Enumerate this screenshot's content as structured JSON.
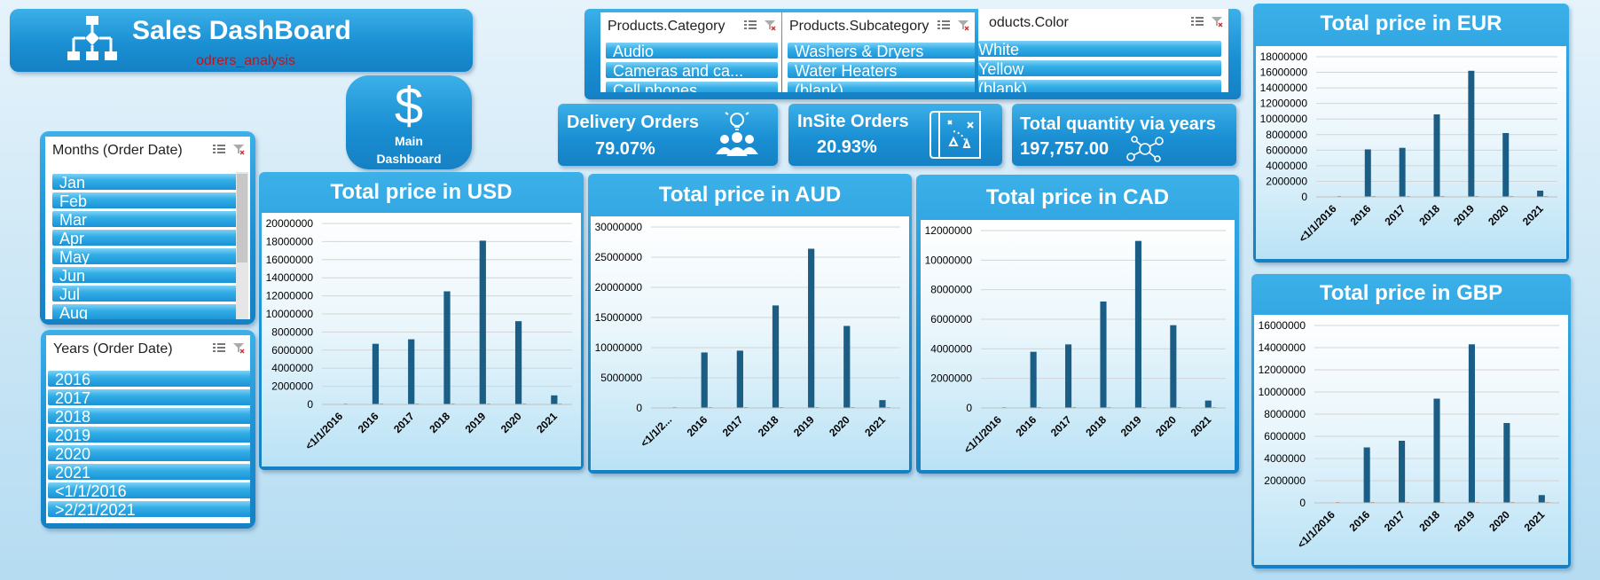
{
  "header": {
    "title": "Sales DashBoard",
    "subtitle": "odrers_analysis",
    "icon": "flowchart-icon"
  },
  "main_button": {
    "icon": "dollar-icon",
    "symbol": "$",
    "line1": "Main",
    "line2": "Dashboard"
  },
  "slicers": {
    "category": {
      "header": "Products.Category",
      "items": [
        "Audio",
        "Cameras and ca...",
        "Cell phones"
      ]
    },
    "subcategory": {
      "header": "Products.Subcategory",
      "items": [
        "Washers & Dryers",
        "Water Heaters",
        "(blank)"
      ]
    },
    "color": {
      "header": "oducts.Color",
      "items": [
        "White",
        "Yellow",
        "(blank)"
      ]
    },
    "months": {
      "header": "Months (Order Date)",
      "items": [
        "Jan",
        "Feb",
        "Mar",
        "Apr",
        "May",
        "Jun",
        "Jul",
        "Aug"
      ]
    },
    "years": {
      "header": "Years (Order Date)",
      "items": [
        "2016",
        "2017",
        "2018",
        "2019",
        "2020",
        "2021",
        "<1/1/2016",
        ">2/21/2021"
      ]
    }
  },
  "kpis": {
    "delivery": {
      "title": "Delivery Orders",
      "value": "79.07%",
      "icon": "users-idea-icon"
    },
    "insite": {
      "title": "InSite Orders",
      "value": "20.93%",
      "icon": "map-icon"
    },
    "quantity": {
      "title": "Total quantity via years",
      "value": "197,757.00",
      "icon": "network-icon"
    }
  },
  "colors": {
    "bar": "#1a5e86",
    "panel_blue": "#1a8fd3",
    "subtitle": "#c0141c"
  },
  "chart_data": [
    {
      "type": "bar",
      "title": "Total price in USD",
      "categories": [
        "<1/1/2016",
        "2016",
        "2017",
        "2018",
        "2019",
        "2020",
        "2021"
      ],
      "values": [
        0,
        6700000,
        7200000,
        12500000,
        18100000,
        9200000,
        1000000
      ],
      "yticks": [
        "20000000",
        "18000000",
        "16000000",
        "14000000",
        "12000000",
        "10000000",
        "8000000",
        "6000000",
        "4000000",
        "2000000",
        "0"
      ],
      "ylim": [
        0,
        20000000
      ],
      "ystep": 2000000
    },
    {
      "type": "bar",
      "title": "Total price in AUD",
      "categories": [
        "<1/1/2...",
        "2016",
        "2017",
        "2018",
        "2019",
        "2020",
        "2021"
      ],
      "values": [
        0,
        9200000,
        9500000,
        17000000,
        26400000,
        13600000,
        1300000
      ],
      "yticks": [
        "30000000",
        "25000000",
        "20000000",
        "15000000",
        "10000000",
        "5000000",
        "0"
      ],
      "ylim": [
        0,
        30000000
      ],
      "ystep": 5000000
    },
    {
      "type": "bar",
      "title": "Total price in CAD",
      "categories": [
        "<1/1/2016",
        "2016",
        "2017",
        "2018",
        "2019",
        "2020",
        "2021"
      ],
      "values": [
        0,
        3800000,
        4300000,
        7200000,
        11300000,
        5600000,
        500000
      ],
      "yticks": [
        "12000000",
        "10000000",
        "8000000",
        "6000000",
        "4000000",
        "2000000",
        "0"
      ],
      "ylim": [
        0,
        12000000
      ],
      "ystep": 2000000
    },
    {
      "type": "bar",
      "title": "Total price in EUR",
      "categories": [
        "<1/1/2016",
        "2016",
        "2017",
        "2018",
        "2019",
        "2020",
        "2021"
      ],
      "values": [
        0,
        6100000,
        6300000,
        10600000,
        16200000,
        8200000,
        800000
      ],
      "yticks": [
        "18000000",
        "16000000",
        "14000000",
        "12000000",
        "10000000",
        "8000000",
        "6000000",
        "4000000",
        "2000000",
        "0"
      ],
      "ylim": [
        0,
        18000000
      ],
      "ystep": 2000000
    },
    {
      "type": "bar",
      "title": "Total price in GBP",
      "categories": [
        "<1/1/2016",
        "2016",
        "2017",
        "2018",
        "2019",
        "2020",
        "2021"
      ],
      "values": [
        0,
        5000000,
        5600000,
        9400000,
        14300000,
        7200000,
        700000
      ],
      "yticks": [
        "16000000",
        "14000000",
        "12000000",
        "10000000",
        "8000000",
        "6000000",
        "4000000",
        "2000000",
        "0"
      ],
      "ylim": [
        0,
        16000000
      ],
      "ystep": 2000000
    }
  ]
}
